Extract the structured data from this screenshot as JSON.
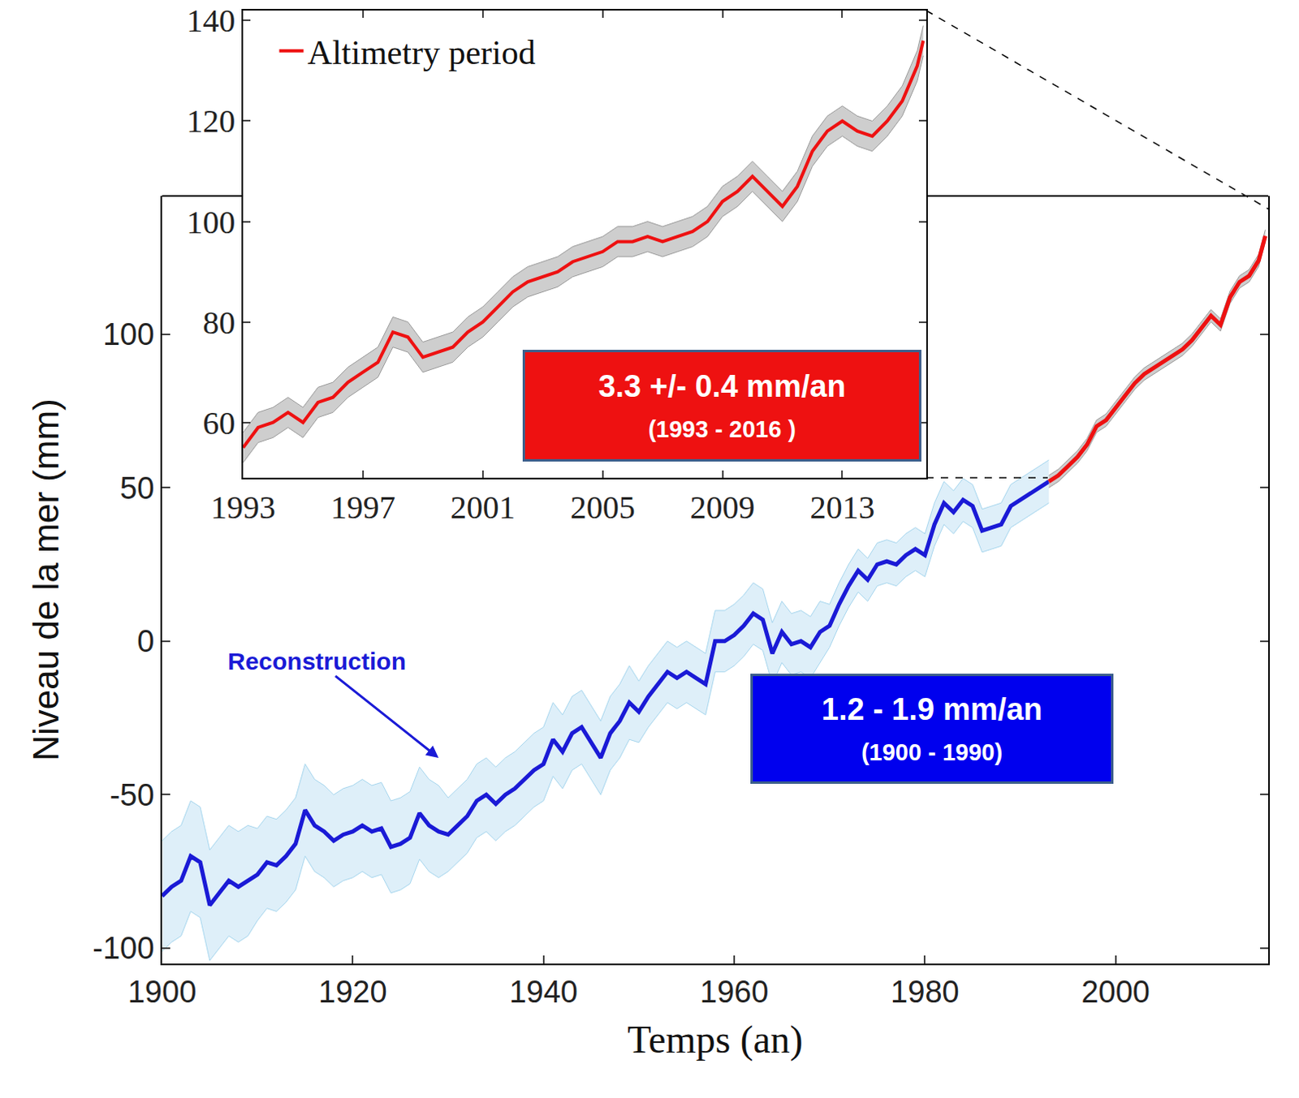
{
  "chart_data": [
    {
      "type": "line",
      "x_label": "Temps (an)",
      "y_label": "Niveau de la mer (mm)",
      "xlim": [
        1900,
        2016
      ],
      "ylim": [
        -105,
        145
      ],
      "xticks": [
        1900,
        1920,
        1940,
        1960,
        1980,
        2000
      ],
      "yticks": [
        -100,
        -50,
        0,
        50,
        100
      ],
      "series": [
        {
          "color": "#1a1ad6",
          "x": [
            1900,
            1901,
            1902,
            1903,
            1904,
            1905,
            1906,
            1907,
            1908,
            1909,
            1910,
            1911,
            1912,
            1913,
            1914,
            1915,
            1916,
            1917,
            1918,
            1919,
            1920,
            1921,
            1922,
            1923,
            1924,
            1925,
            1926,
            1927,
            1928,
            1929,
            1930,
            1931,
            1932,
            1933,
            1934,
            1935,
            1936,
            1937,
            1938,
            1939,
            1940,
            1941,
            1942,
            1943,
            1944,
            1945,
            1946,
            1947,
            1948,
            1949,
            1950,
            1951,
            1952,
            1953,
            1954,
            1955,
            1956,
            1957,
            1958,
            1959,
            1960,
            1961,
            1962,
            1963,
            1964,
            1965,
            1966,
            1967,
            1968,
            1969,
            1970,
            1971,
            1972,
            1973,
            1974,
            1975,
            1976,
            1977,
            1978,
            1979,
            1980,
            1981,
            1982,
            1983,
            1984,
            1985,
            1986,
            1987,
            1988,
            1989,
            1990,
            1991,
            1992,
            1993
          ],
          "values": [
            -83,
            -80,
            -78,
            -70,
            -72,
            -86,
            -82,
            -78,
            -80,
            -78,
            -76,
            -72,
            -73,
            -70,
            -66,
            -55,
            -60,
            -62,
            -65,
            -63,
            -62,
            -60,
            -62,
            -61,
            -67,
            -66,
            -64,
            -56,
            -60,
            -62,
            -63,
            -60,
            -57,
            -52,
            -50,
            -53,
            -50,
            -48,
            -45,
            -42,
            -40,
            -32,
            -36,
            -30,
            -28,
            -33,
            -38,
            -30,
            -26,
            -20,
            -23,
            -18,
            -14,
            -10,
            -12,
            -10,
            -12,
            -14,
            0,
            0,
            2,
            5,
            9,
            7,
            -4,
            3,
            -1,
            0,
            -2,
            3,
            5,
            12,
            18,
            23,
            20,
            25,
            26,
            25,
            28,
            30,
            28,
            38,
            45,
            42,
            46,
            44,
            36,
            37,
            38,
            44,
            46,
            48,
            50,
            52
          ],
          "error": [
            18,
            18,
            18,
            18,
            18,
            18,
            18,
            18,
            18,
            18,
            15,
            15,
            15,
            15,
            15,
            15,
            15,
            15,
            15,
            15,
            15,
            15,
            15,
            15,
            15,
            15,
            15,
            15,
            15,
            15,
            12,
            12,
            12,
            12,
            12,
            12,
            12,
            12,
            12,
            12,
            12,
            12,
            12,
            12,
            12,
            12,
            12,
            12,
            12,
            12,
            10,
            10,
            10,
            10,
            10,
            10,
            10,
            10,
            10,
            10,
            10,
            10,
            10,
            10,
            10,
            10,
            10,
            10,
            10,
            10,
            7,
            7,
            7,
            7,
            7,
            7,
            7,
            7,
            7,
            7,
            7,
            7,
            7,
            7,
            7,
            7,
            7,
            7,
            7,
            7,
            7,
            7,
            7,
            7
          ]
        },
        {
          "color": "#ee1111",
          "x": [
            1993,
            1994,
            1995,
            1996,
            1997,
            1998,
            1999,
            2000,
            2001,
            2002,
            2003,
            2004,
            2005,
            2006,
            2007,
            2008,
            2009,
            2010,
            2011,
            2012,
            2013,
            2014,
            2015,
            2015.7
          ],
          "values": [
            52,
            54,
            57,
            60,
            64,
            70,
            72,
            76,
            80,
            84,
            87,
            89,
            91,
            93,
            95,
            98,
            102,
            106,
            103,
            112,
            117,
            119,
            124,
            132
          ],
          "error": [
            2,
            2,
            2,
            2,
            2,
            2,
            2,
            2,
            2,
            2,
            2,
            2,
            2,
            2,
            2,
            2,
            2,
            2,
            2,
            2,
            2,
            2,
            2,
            2
          ]
        }
      ],
      "annotations": [
        {
          "text": "Reconstruction",
          "x": 1929,
          "y": -38,
          "color": "#1a1ad6"
        },
        {
          "text": "1.2 - 1.9 mm/an",
          "subtext": "(1900 - 1990)",
          "color": "#0000ee"
        }
      ]
    },
    {
      "type": "line",
      "xlim": [
        1993,
        2015.8
      ],
      "ylim": [
        49,
        142
      ],
      "xticks": [
        1993,
        1997,
        2001,
        2005,
        2009,
        2013
      ],
      "yticks": [
        60,
        80,
        100,
        120,
        140
      ],
      "legend": "upper left",
      "series": [
        {
          "name": "Altimetry period",
          "color": "#ee1111",
          "x": [
            1993,
            1993.5,
            1994,
            1994.5,
            1995,
            1995.5,
            1996,
            1996.5,
            1997,
            1997.5,
            1998,
            1998.5,
            1999,
            1999.5,
            2000,
            2000.5,
            2001,
            2001.5,
            2002,
            2002.5,
            2003,
            2003.5,
            2004,
            2004.5,
            2005,
            2005.5,
            2006,
            2006.5,
            2007,
            2007.5,
            2008,
            2008.5,
            2009,
            2009.5,
            2010,
            2010.5,
            2011,
            2011.5,
            2012,
            2012.5,
            2013,
            2013.5,
            2014,
            2014.5,
            2015,
            2015.5,
            2015.7
          ],
          "values": [
            55,
            59,
            60,
            62,
            60,
            64,
            65,
            68,
            70,
            72,
            78,
            77,
            73,
            74,
            75,
            78,
            80,
            83,
            86,
            88,
            89,
            90,
            92,
            93,
            94,
            96,
            96,
            97,
            96,
            97,
            98,
            100,
            104,
            106,
            109,
            106,
            103,
            107,
            114,
            118,
            120,
            118,
            117,
            120,
            124,
            131,
            136
          ],
          "error": [
            3,
            3,
            3,
            3,
            3,
            3,
            3,
            3,
            3,
            3,
            3,
            3,
            3,
            3,
            3,
            3,
            3,
            3,
            3,
            3,
            3,
            3,
            3,
            3,
            3,
            3,
            3,
            3,
            3,
            3,
            3,
            3,
            3,
            3,
            3,
            3,
            3,
            3,
            3,
            3,
            3,
            3,
            3,
            3,
            3,
            3,
            3
          ]
        }
      ],
      "annotations": [
        {
          "text": "3.3 +/- 0.4 mm/an",
          "subtext": "(1993 - 2016 )",
          "color": "#ee1111"
        }
      ]
    }
  ]
}
